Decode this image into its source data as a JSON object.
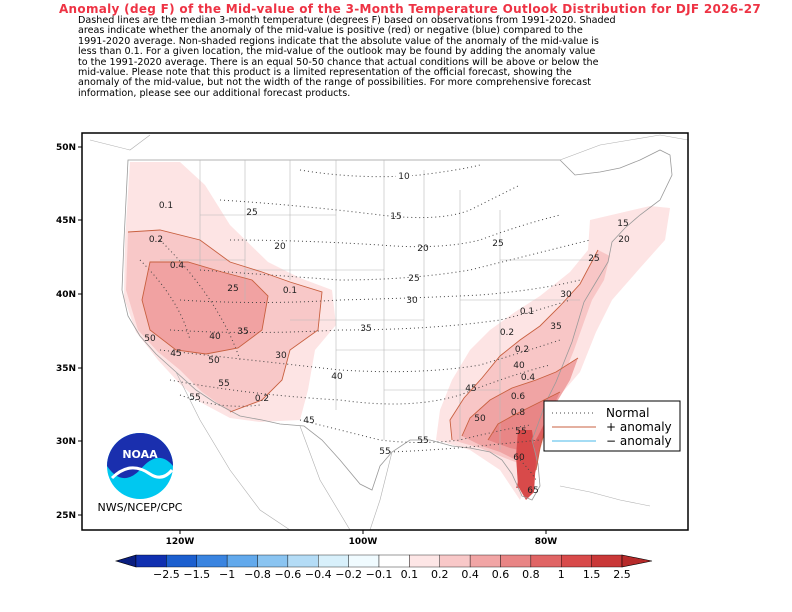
{
  "title": "Anomaly (deg F) of the Mid-value of the 3-Month Temperature Outlook Distribution for DJF 2026-27",
  "description_lines": [
    "Dashed lines are the median 3-month temperature (degrees F) based on observations from 1991-2020.  Shaded",
    "areas indicate whether the anomaly of the mid-value is positive (red) or negative (blue) compared to the",
    "1991-2020 average.   Non-shaded regions indicate that the absolute value of the anomaly of the mid-value is",
    "less than 0.1.   For a given location, the mid-value of the outlook may be found by adding the anomaly value",
    "to the 1991-2020 average. There is an equal 50-50 chance that actual conditions will be above or below the",
    "mid-value. Please note that this product is a limited representation of the official forecast, showing the",
    "anomaly of the mid-value, but not the width of the range of possibilities. For more comprehensive forecast",
    "information, please see our additional forecast products."
  ],
  "lat_labels": [
    "50N",
    "45N",
    "40N",
    "35N",
    "30N",
    "25N"
  ],
  "lon_labels": [
    "120W",
    "100W",
    "80W"
  ],
  "logo": {
    "text": "NOAA",
    "caption": "NWS/NCEP/CPC"
  },
  "legend": {
    "normal": "Normal",
    "plus": "+ anomaly",
    "minus": "− anomaly"
  },
  "median_contour_labels": [
    "10",
    "15",
    "15",
    "20",
    "20",
    "20",
    "25",
    "25",
    "25",
    "25",
    "25",
    "30",
    "30",
    "30",
    "35",
    "35",
    "35",
    "40",
    "40",
    "40",
    "45",
    "45",
    "45",
    "50",
    "50",
    "50",
    "55",
    "55",
    "55",
    "55",
    "55",
    "60",
    "65"
  ],
  "anomaly_contour_labels": [
    "0.1",
    "0.1",
    "0.1",
    "0.2",
    "0.2",
    "0.2",
    "0.2",
    "0.4",
    "0.4",
    "0.6",
    "0.8"
  ],
  "colorbar": {
    "labels": [
      "−2.5",
      "−1.5",
      "−1",
      "−0.8",
      "−0.6",
      "−0.4",
      "−0.2",
      "−0.1",
      "0.1",
      "0.2",
      "0.4",
      "0.6",
      "0.8",
      "1",
      "1.5",
      "2.5"
    ],
    "colors": [
      "#1030b0",
      "#1c5fcf",
      "#3a84e0",
      "#62a9ec",
      "#8ac4f1",
      "#b4dcf6",
      "#d8f0fb",
      "#f0fbff",
      "#ffffff",
      "#fde6e6",
      "#f8c8c8",
      "#f1a5a5",
      "#e88585",
      "#e06565",
      "#d84a4a",
      "#c93838"
    ],
    "arrow_left_color": "#0a1e80",
    "arrow_right_color": "#b62a2a"
  },
  "colors": {
    "title": "#ee3344",
    "anomaly_line": "#c86040",
    "minus_line": "#4ab8e8"
  }
}
